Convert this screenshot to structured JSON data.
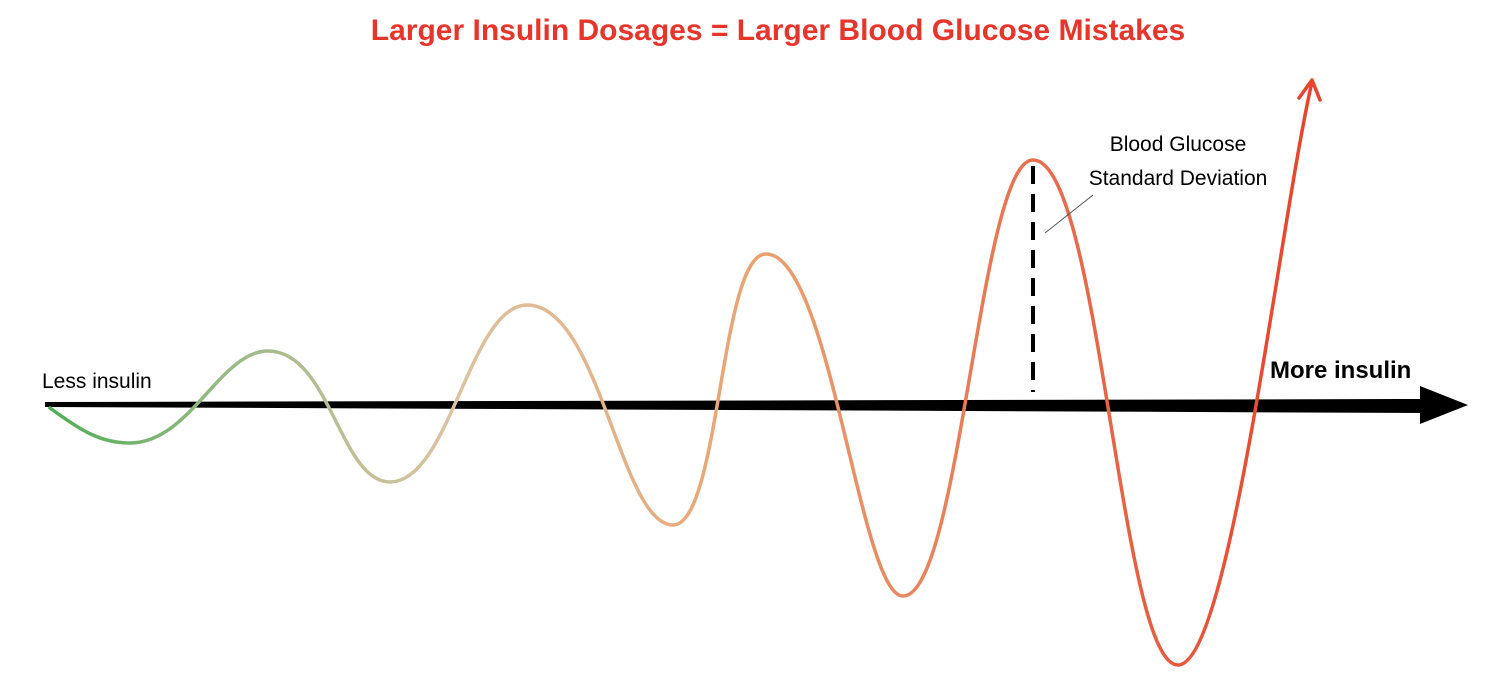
{
  "title": "Larger Insulin Dosages = Larger Blood Glucose Mistakes",
  "axis": {
    "left_label": "Less insulin",
    "right_label": "More insulin"
  },
  "annotation": {
    "lines": [
      "Blood Glucose",
      "Standard Deviation"
    ]
  }
}
